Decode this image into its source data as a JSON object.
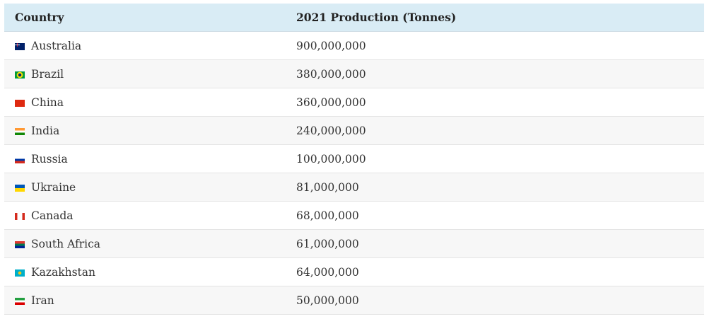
{
  "table": {
    "headers": [
      "Country",
      "2021 Production (Tonnes)"
    ],
    "rows": [
      {
        "country": "Australia",
        "production": "900,000,000",
        "flag": "australia-flag"
      },
      {
        "country": "Brazil",
        "production": "380,000,000",
        "flag": "brazil-flag"
      },
      {
        "country": "China",
        "production": "360,000,000",
        "flag": "china-flag"
      },
      {
        "country": "India",
        "production": "240,000,000",
        "flag": "india-flag"
      },
      {
        "country": "Russia",
        "production": "100,000,000",
        "flag": "russia-flag"
      },
      {
        "country": "Ukraine",
        "production": "81,000,000",
        "flag": "ukraine-flag"
      },
      {
        "country": "Canada",
        "production": "68,000,000",
        "flag": "canada-flag"
      },
      {
        "country": "South Africa",
        "production": "61,000,000",
        "flag": "south-africa-flag"
      },
      {
        "country": "Kazakhstan",
        "production": "64,000,000",
        "flag": "kazakhstan-flag"
      },
      {
        "country": "Iran",
        "production": "50,000,000",
        "flag": "iran-flag"
      }
    ]
  },
  "colors": {
    "header_bg": "#d9ecf5",
    "stripe_bg": "#f7f7f7"
  }
}
